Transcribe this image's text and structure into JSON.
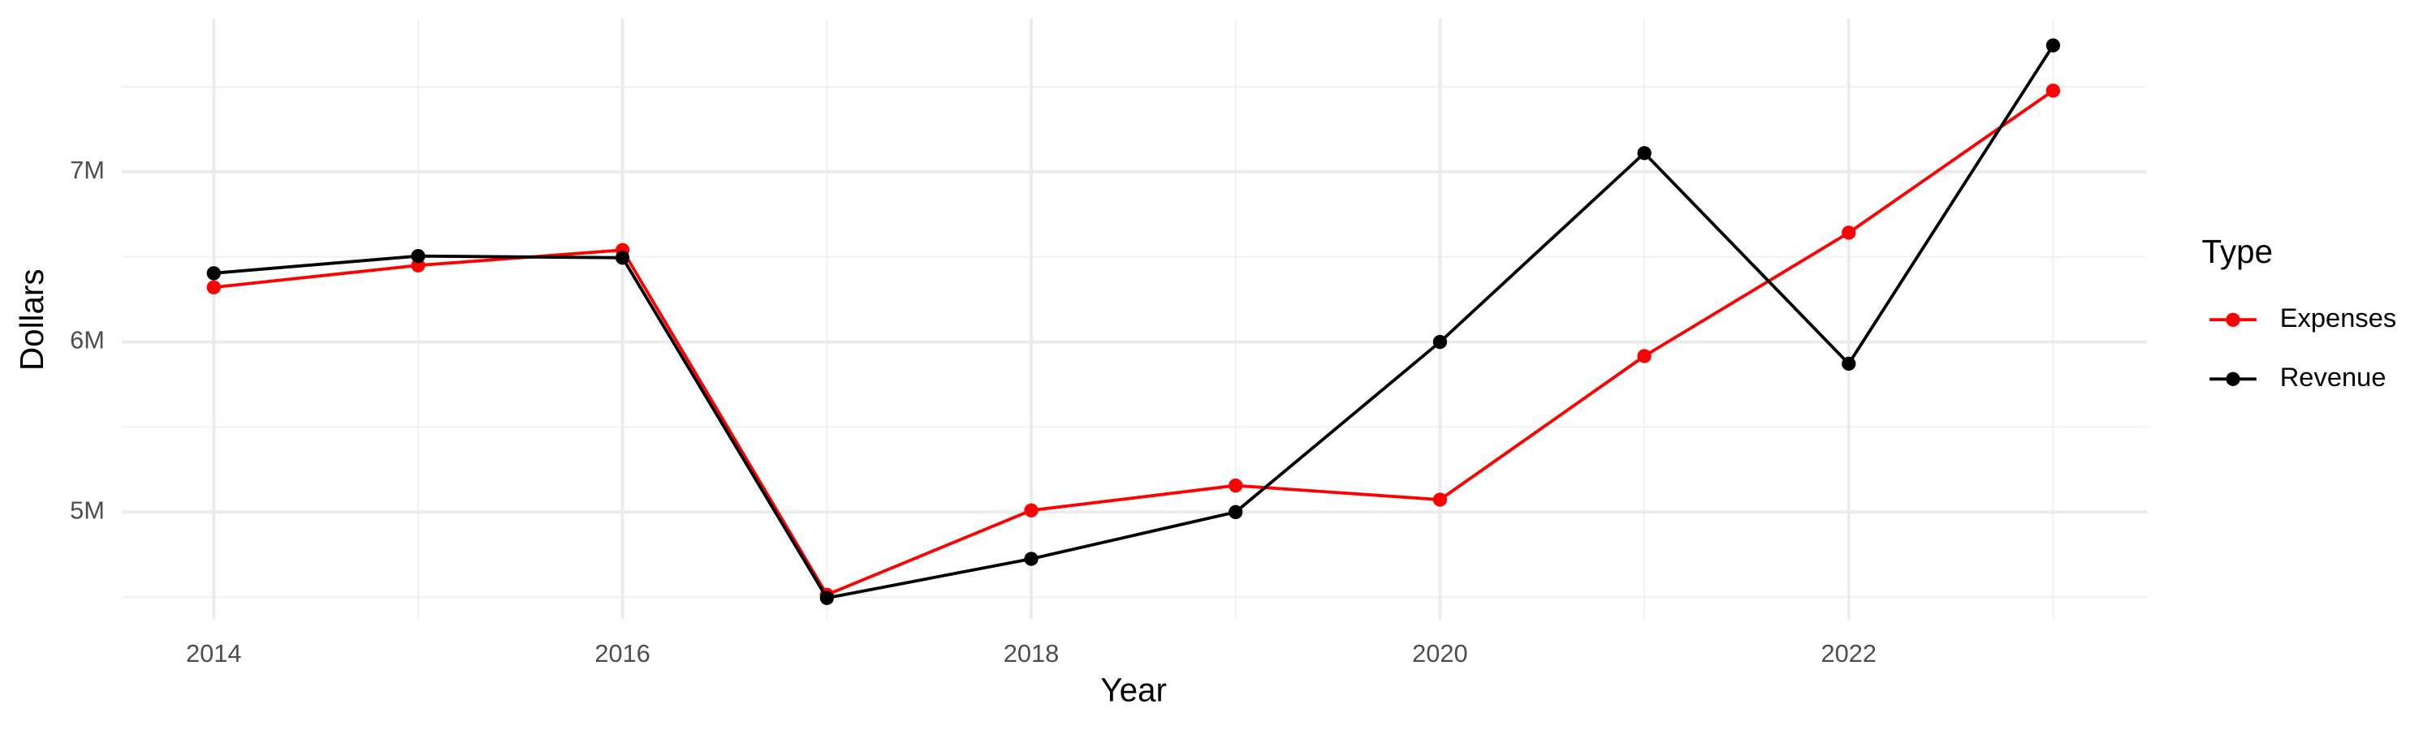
{
  "chart_data": {
    "type": "line",
    "x_label": "Year",
    "y_label": "Dollars",
    "x": [
      2014,
      2015,
      2016,
      2017,
      2018,
      2019,
      2020,
      2021,
      2022,
      2023
    ],
    "series": [
      {
        "name": "Expenses",
        "color": "#ff0000",
        "values": [
          6321000,
          6450000,
          6540000,
          4514000,
          5010000,
          5156000,
          5073000,
          5917000,
          6642000,
          7477000
        ]
      },
      {
        "name": "Revenue",
        "color": "#000000",
        "values": [
          6404000,
          6505000,
          6495000,
          4495000,
          4725000,
          5000000,
          6000000,
          7110000,
          5872000,
          7743000
        ]
      }
    ],
    "xlim": [
      2013.55,
      2023.46
    ],
    "xticks": [
      2014,
      2016,
      2018,
      2020,
      2022
    ],
    "ylim": [
      4370000,
      7900000
    ],
    "yticks": [
      {
        "value": 5000000,
        "label": "5M"
      },
      {
        "value": 6000000,
        "label": "6M"
      },
      {
        "value": 7000000,
        "label": "7M"
      }
    ],
    "grid": true,
    "legend_title": "Type",
    "legend_position": "right"
  }
}
